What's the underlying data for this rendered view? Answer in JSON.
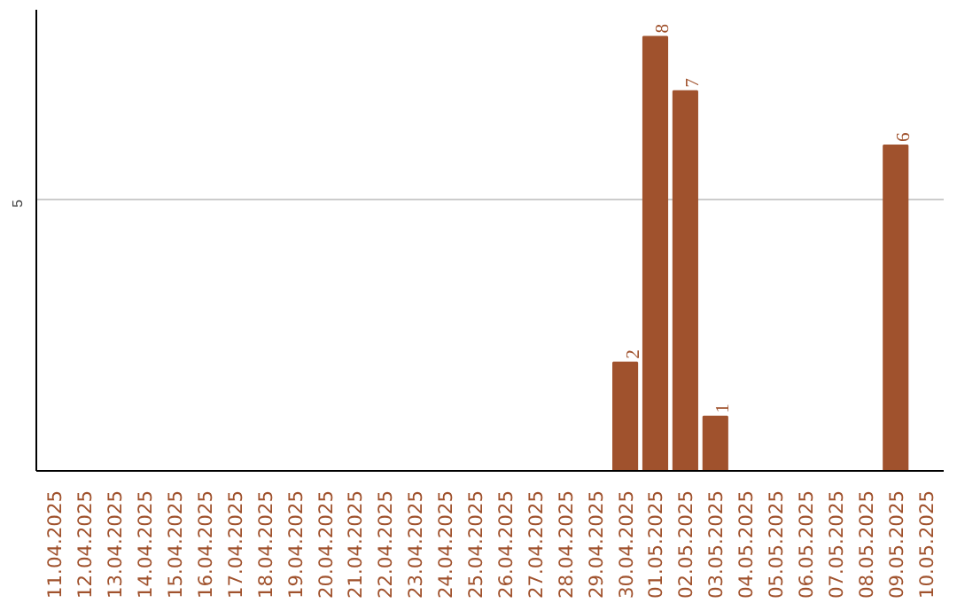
{
  "chart_data": {
    "type": "bar",
    "categories": [
      "11.04.2025",
      "12.04.2025",
      "13.04.2025",
      "14.04.2025",
      "15.04.2025",
      "16.04.2025",
      "17.04.2025",
      "18.04.2025",
      "19.04.2025",
      "20.04.2025",
      "21.04.2025",
      "22.04.2025",
      "23.04.2025",
      "24.04.2025",
      "25.04.2025",
      "26.04.2025",
      "27.04.2025",
      "28.04.2025",
      "29.04.2025",
      "30.04.2025",
      "01.05.2025",
      "02.05.2025",
      "03.05.2025",
      "04.05.2025",
      "05.05.2025",
      "06.05.2025",
      "07.05.2025",
      "08.05.2025",
      "09.05.2025",
      "10.05.2025"
    ],
    "values": [
      null,
      null,
      null,
      null,
      null,
      null,
      null,
      null,
      null,
      null,
      null,
      null,
      null,
      null,
      null,
      null,
      null,
      null,
      null,
      2,
      8,
      7,
      1,
      null,
      null,
      null,
      null,
      null,
      6,
      null
    ],
    "data_labels": true,
    "color": "#a0522d",
    "ylim": [
      0,
      8.5
    ],
    "yticks": [
      5
    ],
    "grid": "y"
  }
}
